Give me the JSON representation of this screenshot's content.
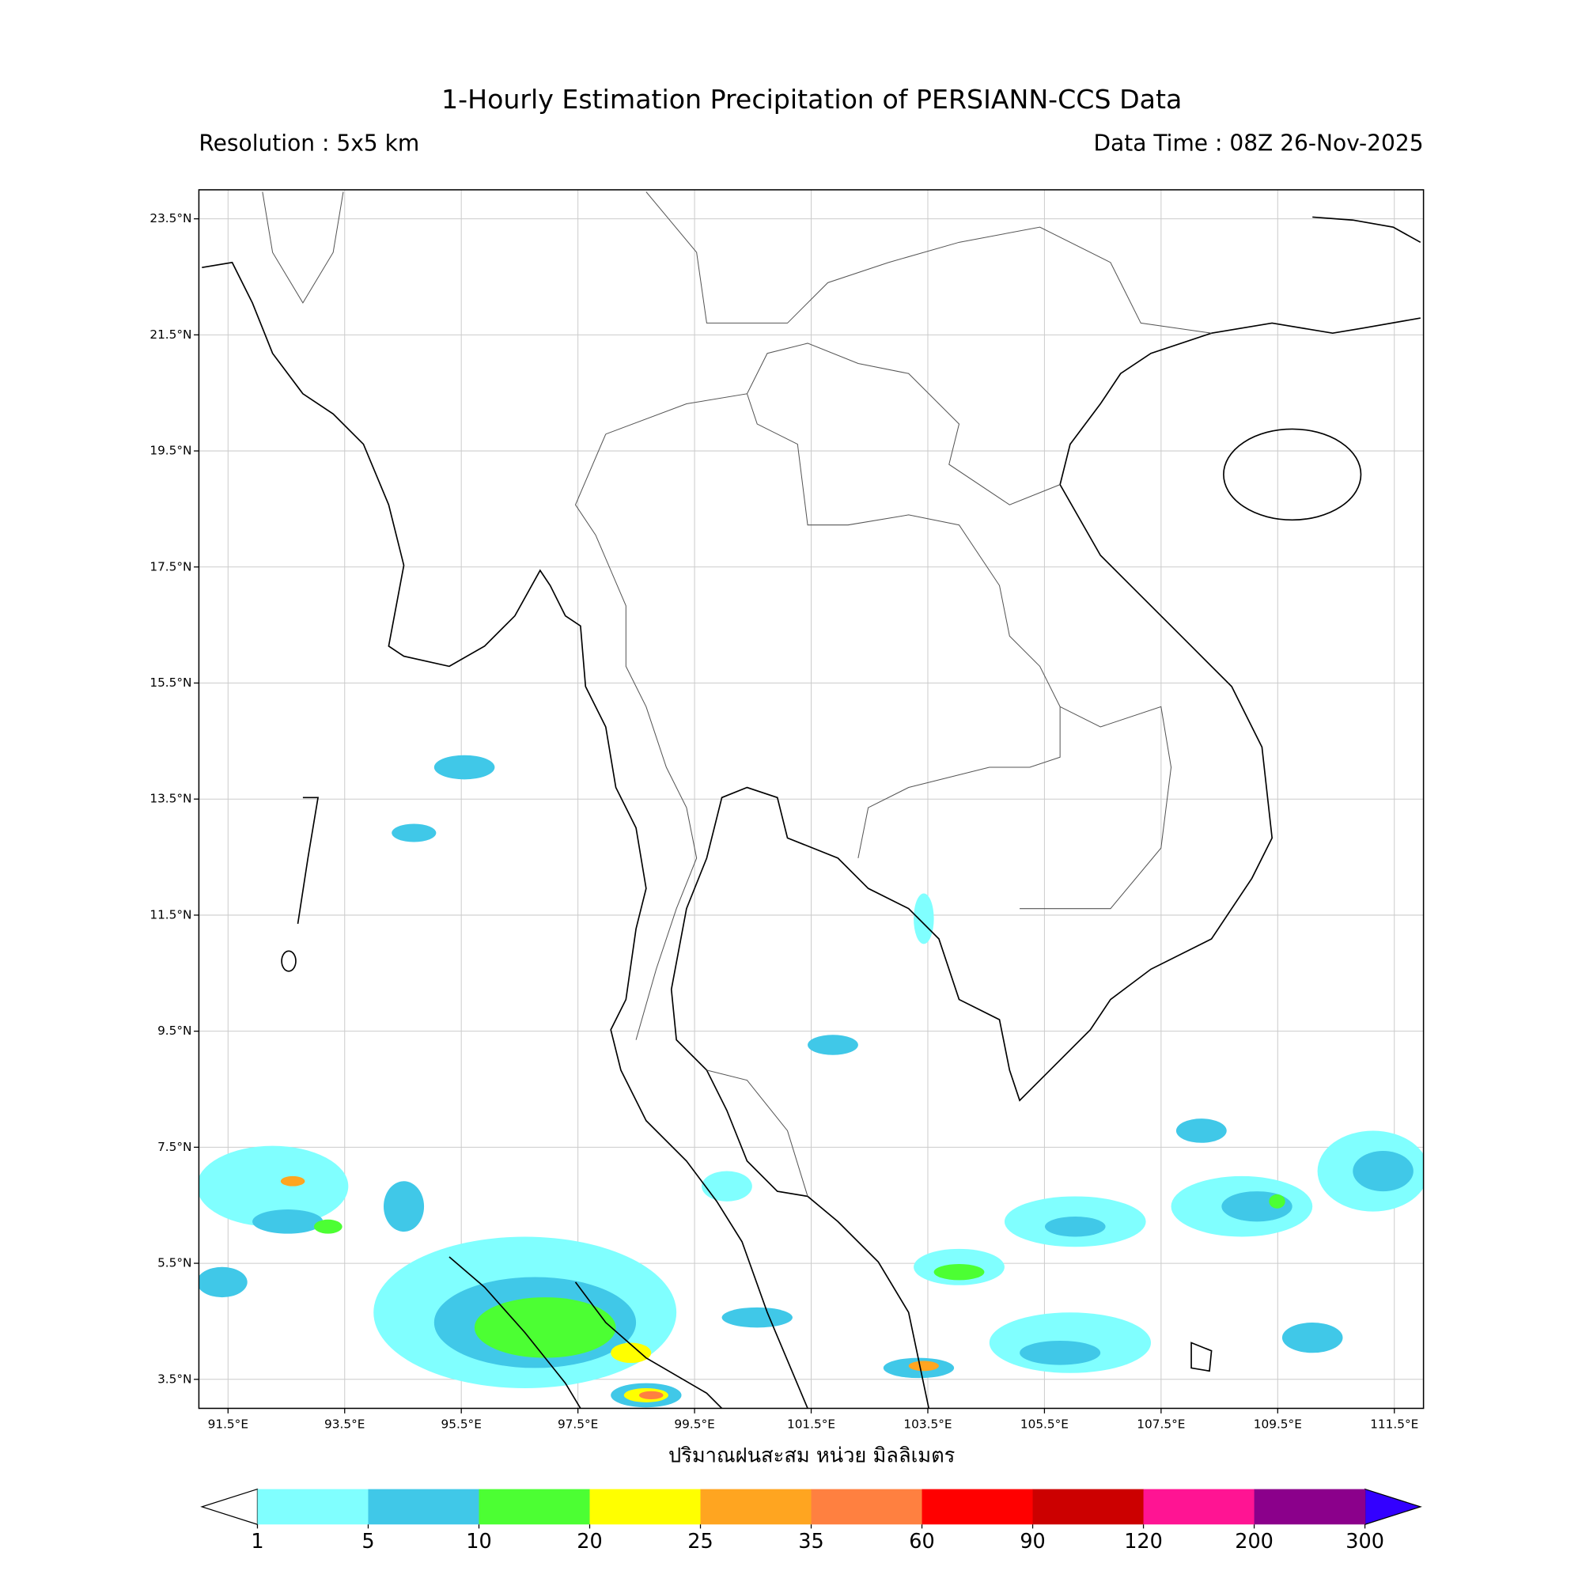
{
  "title": "1-Hourly Estimation Precipitation of PERSIANN-CCS Data",
  "subtitle_left": "Resolution : 5x5 km",
  "subtitle_right": "Data Time : 08Z 26-Nov-2025",
  "map": {
    "xlim": [
      91,
      112
    ],
    "ylim": [
      3,
      24
    ],
    "grid": true,
    "xticks": [
      {
        "value": 91.5,
        "label": "91.5°E"
      },
      {
        "value": 93.5,
        "label": "93.5°E"
      },
      {
        "value": 95.5,
        "label": "95.5°E"
      },
      {
        "value": 97.5,
        "label": "97.5°E"
      },
      {
        "value": 99.5,
        "label": "99.5°E"
      },
      {
        "value": 101.5,
        "label": "101.5°E"
      },
      {
        "value": 103.5,
        "label": "103.5°E"
      },
      {
        "value": 105.5,
        "label": "105.5°E"
      },
      {
        "value": 107.5,
        "label": "107.5°E"
      },
      {
        "value": 109.5,
        "label": "109.5°E"
      },
      {
        "value": 111.5,
        "label": "111.5°E"
      }
    ],
    "yticks": [
      {
        "value": 3.5,
        "label": "3.5°N"
      },
      {
        "value": 5.5,
        "label": "5.5°N"
      },
      {
        "value": 7.5,
        "label": "7.5°N"
      },
      {
        "value": 9.5,
        "label": "9.5°N"
      },
      {
        "value": 11.5,
        "label": "11.5°N"
      },
      {
        "value": 13.5,
        "label": "13.5°N"
      },
      {
        "value": 15.5,
        "label": "15.5°N"
      },
      {
        "value": 17.5,
        "label": "17.5°N"
      },
      {
        "value": 19.5,
        "label": "19.5°N"
      },
      {
        "value": 21.5,
        "label": "21.5°N"
      },
      {
        "value": 23.5,
        "label": "23.5°N"
      }
    ]
  },
  "colorbar": {
    "label": "ปริมาณฝนสะสม หน่วย มิลลิเมตร",
    "levels": [
      1,
      5,
      10,
      20,
      25,
      35,
      60,
      90,
      120,
      200,
      300
    ],
    "colors": [
      "#80ffff",
      "#40c8e8",
      "#4cff33",
      "#ffff00",
      "#ffa520",
      "#ff8040",
      "#ff0000",
      "#cc0000",
      "#ff1493",
      "#8b008b"
    ],
    "under_color": "#ffffff",
    "over_color": "#3300ff"
  }
}
